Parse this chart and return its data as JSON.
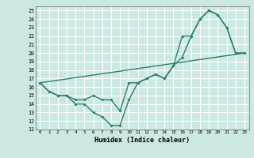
{
  "title": "",
  "xlabel": "Humidex (Indice chaleur)",
  "bg_color": "#cce8e4",
  "line_color": "#2e7d6e",
  "grid_color": "#ffffff",
  "xlim": [
    -0.5,
    23.5
  ],
  "ylim": [
    11,
    25.5
  ],
  "xticks": [
    0,
    1,
    2,
    3,
    4,
    5,
    6,
    7,
    8,
    9,
    10,
    11,
    12,
    13,
    14,
    15,
    16,
    17,
    18,
    19,
    20,
    21,
    22,
    23
  ],
  "yticks": [
    11,
    12,
    13,
    14,
    15,
    16,
    17,
    18,
    19,
    20,
    21,
    22,
    23,
    24,
    25
  ],
  "series1_x": [
    0,
    1,
    2,
    3,
    4,
    5,
    6,
    7,
    8,
    9,
    10,
    11,
    12,
    13,
    14,
    15,
    16,
    17,
    18,
    19,
    20,
    21,
    22,
    23
  ],
  "series1_y": [
    16.5,
    15.5,
    15.0,
    15.0,
    14.5,
    14.5,
    15.0,
    14.5,
    14.5,
    13.2,
    16.5,
    16.5,
    17.0,
    17.5,
    17.0,
    18.5,
    22.0,
    22.0,
    24.0,
    25.0,
    24.5,
    23.0,
    20.0,
    20.0
  ],
  "series2_x": [
    0,
    1,
    2,
    3,
    4,
    5,
    6,
    7,
    8,
    9,
    10,
    11,
    12,
    13,
    14,
    15,
    16,
    17,
    18,
    19,
    20,
    21,
    22,
    23
  ],
  "series2_y": [
    16.5,
    15.5,
    15.0,
    15.0,
    14.0,
    14.0,
    13.0,
    12.5,
    11.5,
    11.5,
    14.5,
    16.5,
    17.0,
    17.5,
    17.0,
    18.5,
    19.5,
    22.0,
    24.0,
    25.0,
    24.5,
    23.0,
    20.0,
    20.0
  ],
  "series3_x": [
    0,
    23
  ],
  "series3_y": [
    16.5,
    20.0
  ]
}
